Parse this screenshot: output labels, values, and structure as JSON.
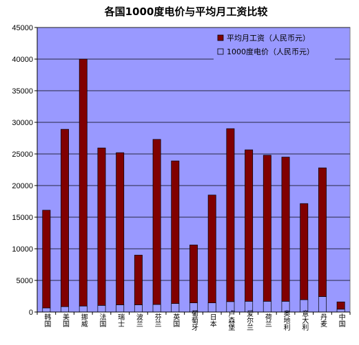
{
  "chart_data": {
    "type": "bar",
    "stacked": true,
    "title": "各国1000度电价与平均月工资比较",
    "xlabel": "",
    "ylabel": "",
    "ylim": [
      0,
      45000
    ],
    "yticks": [
      0,
      5000,
      10000,
      15000,
      20000,
      25000,
      30000,
      35000,
      40000,
      45000
    ],
    "grid": true,
    "legend_position": "top-right",
    "categories": [
      "韩国",
      "美国",
      "挪威",
      "法国",
      "瑞士",
      "波兰",
      "芬兰",
      "英国",
      "葡萄牙",
      "日本",
      "卢森堡",
      "爱尔兰",
      "荷兰",
      "奥地利",
      "意大利",
      "丹麦",
      "中国"
    ],
    "series": [
      {
        "name": "1000度电价（人民币元）",
        "color": "#9999ff",
        "values": [
          650,
          850,
          950,
          1050,
          1150,
          1150,
          1200,
          1350,
          1450,
          1450,
          1650,
          1700,
          1700,
          1700,
          1950,
          2450,
          450
        ]
      },
      {
        "name": "平均月工资（人民币元）",
        "color": "#800000",
        "values": [
          15450,
          28050,
          39050,
          24900,
          24050,
          7850,
          26100,
          22550,
          9150,
          17050,
          27350,
          23950,
          23100,
          22800,
          15200,
          20350,
          1150
        ]
      }
    ]
  },
  "colors": {
    "plot_background": "#9999ff",
    "gridline": "#000000",
    "wage_bar": "#800000",
    "price_bar": "#9999ff"
  }
}
